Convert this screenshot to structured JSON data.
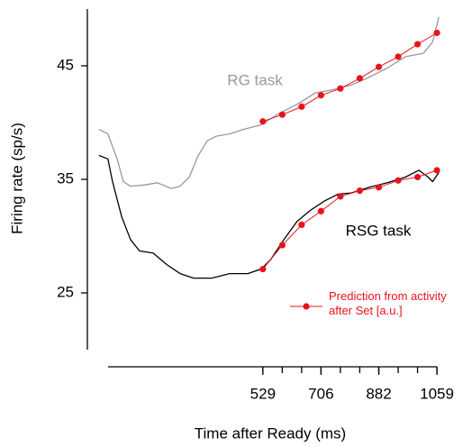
{
  "chart_data": {
    "type": "line",
    "xlabel": "Time after Ready (ms)",
    "ylabel": "Firing rate (sp/s)",
    "xlim": [
      0,
      1100
    ],
    "ylim": [
      20,
      50
    ],
    "xticks": [
      529,
      706,
      882,
      1059
    ],
    "xminor_ticks": [
      529,
      588,
      647,
      706,
      765,
      824,
      882,
      941,
      1000,
      1059
    ],
    "yticks": [
      25,
      35,
      45
    ],
    "series": [
      {
        "name": "RG task",
        "color": "#999999",
        "x": [
          30,
          57,
          85,
          104,
          125,
          167,
          208,
          250,
          277,
          305,
          332,
          360,
          387,
          428,
          469,
          524,
          578,
          633,
          688,
          743,
          798,
          853,
          908,
          963,
          1018,
          1046,
          1065
        ],
        "values": [
          39.4,
          39.0,
          36.8,
          34.8,
          34.4,
          34.5,
          34.7,
          34.2,
          34.4,
          35.2,
          37.1,
          38.4,
          38.8,
          39.0,
          39.4,
          39.8,
          40.8,
          41.6,
          42.6,
          42.9,
          43.3,
          44.0,
          44.8,
          45.8,
          46.1,
          47.1,
          49.3
        ]
      },
      {
        "name": "RSG task",
        "color": "#000000",
        "x": [
          30,
          57,
          71,
          99,
          126,
          153,
          195,
          236,
          277,
          318,
          373,
          428,
          483,
          524,
          552,
          593,
          633,
          675,
          717,
          758,
          798,
          853,
          908,
          963,
          1004,
          1032,
          1046,
          1065
        ],
        "values": [
          37.1,
          36.8,
          34.8,
          31.7,
          29.7,
          28.7,
          28.5,
          27.5,
          26.7,
          26.3,
          26.3,
          26.7,
          26.7,
          27.1,
          27.9,
          29.7,
          31.3,
          32.3,
          33.1,
          33.7,
          33.8,
          34.3,
          34.7,
          35.2,
          35.8,
          35.2,
          34.8,
          35.6
        ]
      }
    ],
    "prediction": {
      "name": "Prediction from activity after Set [a.u.]",
      "color": "#e8141c",
      "x": [
        529,
        588,
        647,
        706,
        765,
        824,
        882,
        941,
        1000,
        1059
      ],
      "rg_values": [
        40.1,
        40.7,
        41.4,
        42.4,
        43.0,
        43.9,
        44.9,
        45.8,
        46.9,
        47.9
      ],
      "rsg_values": [
        27.1,
        29.2,
        31.0,
        32.2,
        33.5,
        34.0,
        34.3,
        34.9,
        35.2,
        35.8
      ]
    }
  }
}
